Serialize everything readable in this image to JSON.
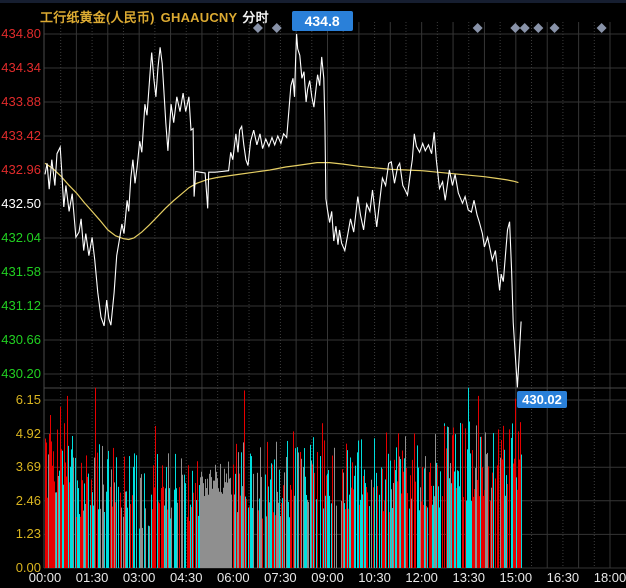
{
  "header": {
    "instrument": "工行纸黄金(人民币)",
    "symbol": "GHAAUCNY",
    "mode": "分时"
  },
  "badges": {
    "high": "434.8",
    "low": "430.02"
  },
  "colors": {
    "background": "#000000",
    "title_gold": "#dcaa32",
    "badge_blue": "#2a80d9",
    "price_line": "#ffffff",
    "ma_line": "#e5ce63",
    "label_up_red": "#e02b2b",
    "label_mid_white": "#ffffff",
    "label_down_green": "#21cf21",
    "volume_label_yellow": "#d9b420",
    "volume_up_red": "#e60000",
    "volume_down_cyan": "#00dede",
    "volume_flat_gray": "#8f8f8f",
    "grid_solid": "#353535",
    "grid_dotted": "#3b3b3b",
    "axis_line": "#4a4a4a",
    "marker_diamond": "#8892a8"
  },
  "price_axis": [
    {
      "text": "434.80",
      "color": "#e02b2b"
    },
    {
      "text": "434.34",
      "color": "#e02b2b"
    },
    {
      "text": "433.88",
      "color": "#e02b2b"
    },
    {
      "text": "433.42",
      "color": "#e02b2b"
    },
    {
      "text": "432.96",
      "color": "#e02b2b"
    },
    {
      "text": "432.50",
      "color": "#ffffff"
    },
    {
      "text": "432.04",
      "color": "#21cf21"
    },
    {
      "text": "431.58",
      "color": "#21cf21"
    },
    {
      "text": "431.12",
      "color": "#21cf21"
    },
    {
      "text": "430.66",
      "color": "#21cf21"
    },
    {
      "text": "430.20",
      "color": "#21cf21"
    }
  ],
  "volume_axis": [
    "6.15",
    "4.92",
    "3.69",
    "2.46",
    "1.23",
    "0.00"
  ],
  "time_axis": [
    "00:00",
    "01:30",
    "03:00",
    "04:30",
    "06:00",
    "07:30",
    "09:00",
    "10:30",
    "12:00",
    "13:30",
    "15:00",
    "16:30",
    "18:00"
  ],
  "chart_data": {
    "type": "line",
    "title": "工行纸黄金(人民币) GHAAUCNY 分时",
    "x_unit": "minutes from 00:00",
    "x_axis_range_minutes": [
      0,
      1080
    ],
    "price_gridlines": [
      434.8,
      434.34,
      433.88,
      433.42,
      432.96,
      432.5,
      432.04,
      431.58,
      431.12,
      430.66,
      430.2
    ],
    "day_high": 434.8,
    "day_low": 430.02,
    "last_data_minute": 910,
    "event_marker_minutes": [
      407,
      443,
      827,
      899,
      917,
      943,
      974,
      1064
    ],
    "series": [
      {
        "name": "price",
        "color": "#ffffff",
        "points": [
          [
            0,
            432.9
          ],
          [
            4,
            433.05
          ],
          [
            8,
            432.7
          ],
          [
            13,
            433.1
          ],
          [
            19,
            432.75
          ],
          [
            23,
            433.18
          ],
          [
            29,
            433.27
          ],
          [
            32,
            432.95
          ],
          [
            36,
            432.46
          ],
          [
            40,
            432.75
          ],
          [
            46,
            432.4
          ],
          [
            52,
            432.64
          ],
          [
            59,
            432.05
          ],
          [
            65,
            432.12
          ],
          [
            69,
            432.3
          ],
          [
            74,
            431.87
          ],
          [
            78,
            432.1
          ],
          [
            84,
            431.8
          ],
          [
            90,
            432.05
          ],
          [
            95,
            431.75
          ],
          [
            101,
            431.3
          ],
          [
            107,
            430.97
          ],
          [
            113,
            430.85
          ],
          [
            118,
            431.2
          ],
          [
            122,
            430.95
          ],
          [
            126,
            430.86
          ],
          [
            132,
            431.3
          ],
          [
            137,
            431.8
          ],
          [
            143,
            432.05
          ],
          [
            147,
            432.23
          ],
          [
            151,
            432.1
          ],
          [
            157,
            432.55
          ],
          [
            160,
            432.4
          ],
          [
            164,
            432.85
          ],
          [
            168,
            433.1
          ],
          [
            172,
            432.78
          ],
          [
            176,
            433.0
          ],
          [
            181,
            433.35
          ],
          [
            185,
            433.2
          ],
          [
            191,
            433.85
          ],
          [
            195,
            433.7
          ],
          [
            201,
            434.3
          ],
          [
            204,
            434.55
          ],
          [
            208,
            434.2
          ],
          [
            212,
            433.95
          ],
          [
            216,
            434.35
          ],
          [
            220,
            434.62
          ],
          [
            224,
            434.4
          ],
          [
            227,
            434.05
          ],
          [
            231,
            433.6
          ],
          [
            235,
            433.22
          ],
          [
            241,
            433.85
          ],
          [
            246,
            433.6
          ],
          [
            252,
            433.95
          ],
          [
            258,
            433.75
          ],
          [
            264,
            434.0
          ],
          [
            269,
            433.75
          ],
          [
            275,
            433.95
          ],
          [
            279,
            433.5
          ],
          [
            283,
            433.52
          ],
          [
            285,
            432.6
          ],
          [
            288,
            432.94
          ],
          [
            296,
            432.93
          ],
          [
            306,
            432.92
          ],
          [
            311,
            432.44
          ],
          [
            313,
            432.93
          ],
          [
            325,
            432.93
          ],
          [
            338,
            432.94
          ],
          [
            351,
            432.95
          ],
          [
            355,
            433.2
          ],
          [
            359,
            433.1
          ],
          [
            365,
            433.45
          ],
          [
            369,
            433.2
          ],
          [
            372,
            433.5
          ],
          [
            376,
            433.55
          ],
          [
            380,
            433.3
          ],
          [
            384,
            433.1
          ],
          [
            388,
            433.02
          ],
          [
            393,
            433.35
          ],
          [
            399,
            433.5
          ],
          [
            405,
            433.3
          ],
          [
            411,
            433.45
          ],
          [
            416,
            433.25
          ],
          [
            422,
            433.38
          ],
          [
            428,
            433.28
          ],
          [
            434,
            433.4
          ],
          [
            439,
            433.3
          ],
          [
            445,
            433.42
          ],
          [
            451,
            433.32
          ],
          [
            456,
            433.45
          ],
          [
            462,
            433.4
          ],
          [
            466,
            433.75
          ],
          [
            470,
            434.1
          ],
          [
            474,
            434.2
          ],
          [
            477,
            433.95
          ],
          [
            479,
            434.45
          ],
          [
            481,
            434.8
          ],
          [
            483,
            434.6
          ],
          [
            487,
            434.51
          ],
          [
            491,
            434.2
          ],
          [
            495,
            434.29
          ],
          [
            499,
            433.88
          ],
          [
            502,
            434.05
          ],
          [
            506,
            434.17
          ],
          [
            510,
            433.95
          ],
          [
            514,
            433.81
          ],
          [
            517,
            434.0
          ],
          [
            521,
            434.25
          ],
          [
            525,
            434.1
          ],
          [
            529,
            434.49
          ],
          [
            533,
            434.2
          ],
          [
            535,
            433.6
          ],
          [
            537,
            432.57
          ],
          [
            540,
            432.42
          ],
          [
            544,
            432.25
          ],
          [
            548,
            432.4
          ],
          [
            552,
            432.0
          ],
          [
            556,
            432.2
          ],
          [
            560,
            431.95
          ],
          [
            563,
            432.15
          ],
          [
            567,
            431.97
          ],
          [
            573,
            431.87
          ],
          [
            579,
            432.1
          ],
          [
            584,
            432.3
          ],
          [
            590,
            432.12
          ],
          [
            598,
            432.6
          ],
          [
            603,
            432.35
          ],
          [
            609,
            432.15
          ],
          [
            615,
            432.5
          ],
          [
            621,
            432.4
          ],
          [
            626,
            432.69
          ],
          [
            634,
            432.19
          ],
          [
            640,
            432.55
          ],
          [
            645,
            432.85
          ],
          [
            651,
            432.75
          ],
          [
            657,
            433.05
          ],
          [
            662,
            433.07
          ],
          [
            668,
            432.78
          ],
          [
            674,
            433.0
          ],
          [
            678,
            433.05
          ],
          [
            684,
            432.75
          ],
          [
            687,
            432.71
          ],
          [
            693,
            432.62
          ],
          [
            699,
            432.95
          ],
          [
            702,
            433.1
          ],
          [
            706,
            433.45
          ],
          [
            710,
            433.28
          ],
          [
            716,
            433.2
          ],
          [
            722,
            433.32
          ],
          [
            727,
            433.22
          ],
          [
            733,
            433.3
          ],
          [
            739,
            433.18
          ],
          [
            744,
            433.47
          ],
          [
            748,
            433.1
          ],
          [
            754,
            432.71
          ],
          [
            760,
            432.8
          ],
          [
            765,
            432.55
          ],
          [
            773,
            432.96
          ],
          [
            779,
            432.75
          ],
          [
            784,
            432.9
          ],
          [
            790,
            432.65
          ],
          [
            798,
            432.51
          ],
          [
            803,
            432.6
          ],
          [
            809,
            432.42
          ],
          [
            815,
            432.39
          ],
          [
            820,
            432.55
          ],
          [
            826,
            432.35
          ],
          [
            830,
            432.26
          ],
          [
            836,
            432.1
          ],
          [
            840,
            431.92
          ],
          [
            846,
            432.05
          ],
          [
            849,
            431.95
          ],
          [
            855,
            431.74
          ],
          [
            861,
            431.87
          ],
          [
            865,
            431.6
          ],
          [
            869,
            431.33
          ],
          [
            872,
            431.55
          ],
          [
            876,
            431.45
          ],
          [
            880,
            431.8
          ],
          [
            884,
            432.15
          ],
          [
            888,
            432.26
          ],
          [
            892,
            431.6
          ],
          [
            895,
            430.9
          ],
          [
            899,
            430.45
          ],
          [
            903,
            430.02
          ],
          [
            907,
            430.52
          ],
          [
            910,
            430.91
          ]
        ]
      },
      {
        "name": "moving_average",
        "color": "#e5ce63",
        "points": [
          [
            0,
            433.05
          ],
          [
            15,
            432.98
          ],
          [
            30,
            432.88
          ],
          [
            45,
            432.76
          ],
          [
            60,
            432.65
          ],
          [
            75,
            432.52
          ],
          [
            90,
            432.4
          ],
          [
            105,
            432.28
          ],
          [
            120,
            432.15
          ],
          [
            135,
            432.07
          ],
          [
            150,
            432.03
          ],
          [
            160,
            432.02
          ],
          [
            170,
            432.04
          ],
          [
            185,
            432.12
          ],
          [
            200,
            432.22
          ],
          [
            215,
            432.33
          ],
          [
            230,
            432.44
          ],
          [
            245,
            432.54
          ],
          [
            260,
            432.63
          ],
          [
            275,
            432.72
          ],
          [
            290,
            432.78
          ],
          [
            310,
            432.83
          ],
          [
            330,
            432.86
          ],
          [
            350,
            432.88
          ],
          [
            370,
            432.9
          ],
          [
            400,
            432.93
          ],
          [
            430,
            432.96
          ],
          [
            460,
            433.0
          ],
          [
            480,
            433.02
          ],
          [
            500,
            433.04
          ],
          [
            520,
            433.06
          ],
          [
            544,
            433.06
          ],
          [
            570,
            433.04
          ],
          [
            600,
            433.01
          ],
          [
            630,
            432.99
          ],
          [
            660,
            432.97
          ],
          [
            690,
            432.96
          ],
          [
            720,
            432.95
          ],
          [
            750,
            432.93
          ],
          [
            780,
            432.91
          ],
          [
            810,
            432.89
          ],
          [
            840,
            432.87
          ],
          [
            860,
            432.85
          ],
          [
            880,
            432.83
          ],
          [
            895,
            432.81
          ],
          [
            905,
            432.79
          ]
        ]
      }
    ],
    "volume": {
      "ylim": [
        0,
        6.7
      ],
      "ticks": [
        6.15,
        4.92,
        3.69,
        2.46,
        1.23,
        0.0
      ],
      "color_legend": {
        "r": "up",
        "c": "down",
        "g": "unchanged"
      },
      "segments": [
        {
          "from": 0,
          "to": 55,
          "fill": 0.9,
          "hmin": 2.2,
          "hmax": 5.2,
          "weights": {
            "r": 0.45,
            "c": 0.4,
            "g": 0.15
          }
        },
        {
          "from": 56,
          "to": 150,
          "fill": 0.85,
          "hmin": 1.8,
          "hmax": 4.6,
          "weights": {
            "r": 0.38,
            "c": 0.42,
            "g": 0.2
          }
        },
        {
          "from": 151,
          "to": 295,
          "fill": 0.8,
          "hmin": 1.4,
          "hmax": 4.2,
          "weights": {
            "r": 0.38,
            "c": 0.38,
            "g": 0.24
          }
        },
        {
          "from": 296,
          "to": 357,
          "fill": 1.0,
          "hmin": 2.6,
          "hmax": 3.9,
          "weights": {
            "r": 0.0,
            "c": 0.0,
            "g": 1.0
          }
        },
        {
          "from": 358,
          "to": 560,
          "fill": 0.85,
          "hmin": 1.8,
          "hmax": 4.8,
          "weights": {
            "r": 0.42,
            "c": 0.4,
            "g": 0.18
          }
        },
        {
          "from": 561,
          "to": 760,
          "fill": 0.85,
          "hmin": 2.0,
          "hmax": 5.0,
          "weights": {
            "r": 0.4,
            "c": 0.42,
            "g": 0.18
          }
        },
        {
          "from": 761,
          "to": 910,
          "fill": 0.92,
          "hmin": 2.4,
          "hmax": 5.4,
          "weights": {
            "r": 0.42,
            "c": 0.44,
            "g": 0.14
          }
        }
      ],
      "spikes": [
        [
          10,
          5.6,
          "r"
        ],
        [
          29,
          5.9,
          "r"
        ],
        [
          36,
          5.3,
          "r"
        ],
        [
          42,
          6.3,
          "r"
        ],
        [
          95,
          6.6,
          "r"
        ],
        [
          210,
          5.2,
          "r"
        ],
        [
          380,
          6.5,
          "r"
        ],
        [
          474,
          5.0,
          "r"
        ],
        [
          529,
          5.3,
          "r"
        ],
        [
          762,
          5.2,
          "r"
        ],
        [
          783,
          4.9,
          "c"
        ],
        [
          808,
          6.6,
          "c"
        ],
        [
          827,
          6.3,
          "r"
        ],
        [
          899,
          6.2,
          "r"
        ],
        [
          905,
          5.0,
          "r"
        ]
      ]
    }
  }
}
